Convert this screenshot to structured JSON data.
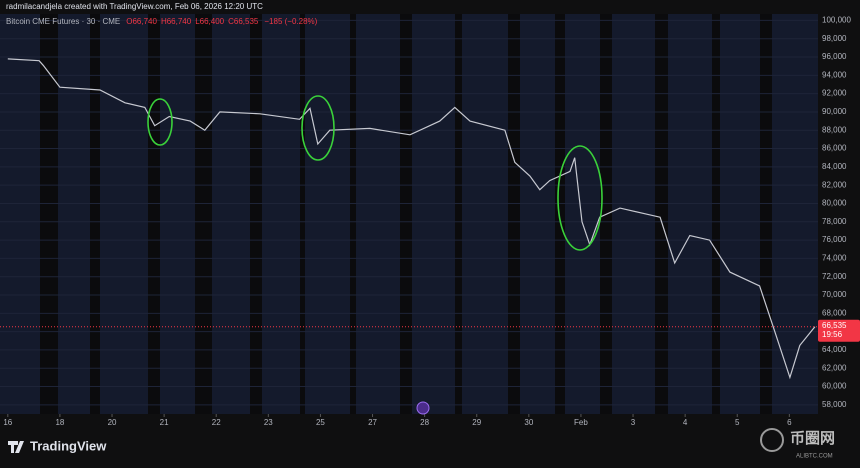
{
  "chart_data": {
    "type": "line",
    "credit": "radmilacandjela created with TradingView.com, Feb 06, 2026 12:20 UTC",
    "title": "Bitcoin CME Futures · 30 · CME",
    "ohlc_labels": [
      "O66,740",
      "H66,740",
      "L66,400",
      "C66,535"
    ],
    "change_label": "−185 (−0.28%)",
    "x": [
      0,
      0.6,
      0.68,
      1.0,
      1.77,
      2.25,
      2.63,
      2.82,
      3.1,
      3.5,
      3.78,
      4.07,
      4.84,
      5.6,
      5.8,
      5.95,
      6.18,
      6.95,
      7.72,
      8.29,
      8.58,
      8.87,
      9.54,
      9.73,
      10.02,
      10.21,
      10.4,
      10.79,
      10.88,
      11.02,
      11.17,
      11.36,
      11.75,
      12.52,
      12.8,
      13.09,
      13.47,
      13.86,
      14.43,
      14.72,
      15.01,
      15.2,
      15.49
    ],
    "series": [
      {
        "name": "Bitcoin CME Futures",
        "color": "#c7c9d1",
        "values": [
          95800,
          95600,
          95100,
          92700,
          92400,
          91000,
          90500,
          88500,
          89500,
          89000,
          88000,
          90000,
          89800,
          89200,
          90400,
          86500,
          88000,
          88200,
          87500,
          89000,
          90500,
          89000,
          88000,
          84500,
          83000,
          81500,
          82500,
          83500,
          85000,
          78000,
          75500,
          78500,
          79500,
          78500,
          73500,
          76500,
          76000,
          72500,
          71000,
          66000,
          61000,
          64500,
          66535
        ]
      }
    ],
    "xlim": [
      -0.15,
      15.55
    ],
    "xticks": [
      {
        "value": 0,
        "label": "16"
      },
      {
        "value": 1,
        "label": "18"
      },
      {
        "value": 2,
        "label": "20"
      },
      {
        "value": 3,
        "label": "21"
      },
      {
        "value": 4,
        "label": "22"
      },
      {
        "value": 5,
        "label": "23"
      },
      {
        "value": 6,
        "label": "25"
      },
      {
        "value": 7,
        "label": "27"
      },
      {
        "value": 8,
        "label": "28"
      },
      {
        "value": 9,
        "label": "29"
      },
      {
        "value": 10,
        "label": "30"
      },
      {
        "value": 11,
        "label": "Feb"
      },
      {
        "value": 12,
        "label": "3"
      },
      {
        "value": 13,
        "label": "4"
      },
      {
        "value": 14,
        "label": "5"
      },
      {
        "value": 15,
        "label": "6"
      }
    ],
    "ylim": [
      57000,
      100700
    ],
    "yticks": [
      {
        "value": 58000,
        "label": "58,000"
      },
      {
        "value": 60000,
        "label": "60,000"
      },
      {
        "value": 62000,
        "label": "62,000"
      },
      {
        "value": 64000,
        "label": "64,000"
      },
      {
        "value": 66000,
        "label": "66,000"
      },
      {
        "value": 68000,
        "label": "68,000"
      },
      {
        "value": 70000,
        "label": "70,000"
      },
      {
        "value": 72000,
        "label": "72,000"
      },
      {
        "value": 74000,
        "label": "74,000"
      },
      {
        "value": 76000,
        "label": "76,000"
      },
      {
        "value": 78000,
        "label": "78,000"
      },
      {
        "value": 80000,
        "label": "80,000"
      },
      {
        "value": 82000,
        "label": "82,000"
      },
      {
        "value": 84000,
        "label": "84,000"
      },
      {
        "value": 86000,
        "label": "86,000"
      },
      {
        "value": 88000,
        "label": "88,000"
      },
      {
        "value": 90000,
        "label": "90,000"
      },
      {
        "value": 92000,
        "label": "92,000"
      },
      {
        "value": 94000,
        "label": "94,000"
      },
      {
        "value": 96000,
        "label": "96,000"
      },
      {
        "value": 98000,
        "label": "98,000"
      },
      {
        "value": 100000,
        "label": "100,000"
      }
    ],
    "grid": true,
    "last_price": {
      "value": 66535,
      "label": "66,535"
    },
    "countdown": "19:56",
    "brand": "TradingView",
    "watermark": "币圈网",
    "watermark_sub": "ALIBTC.COM"
  }
}
